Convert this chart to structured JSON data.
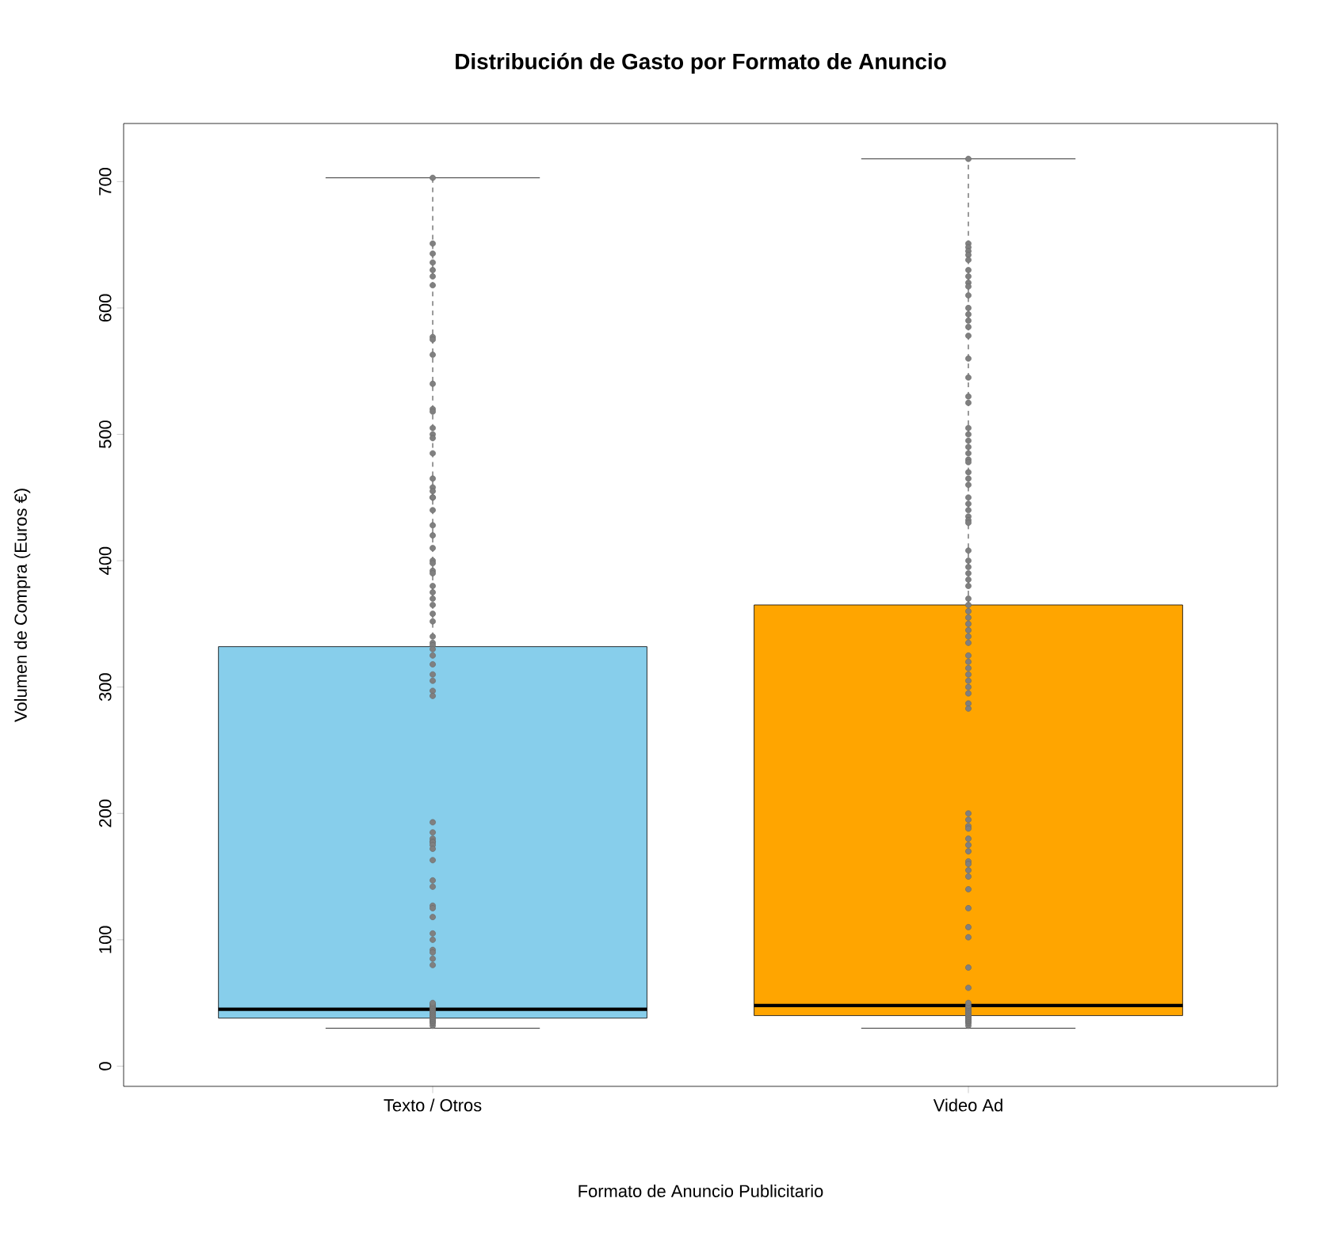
{
  "chart_data": {
    "type": "box",
    "title": "Distribución de Gasto por Formato de Anuncio",
    "xlabel": "Formato de Anuncio Publicitario",
    "ylabel": "Volumen de Compra (Euros €)",
    "categories": [
      "Texto / Otros",
      "Video Ad"
    ],
    "colors": [
      "#87ceeb",
      "#ffa500"
    ],
    "boxes": [
      {
        "low": 30,
        "q1": 38,
        "median": 45,
        "q3": 332,
        "high": 703
      },
      {
        "low": 30,
        "q1": 40,
        "median": 48,
        "q3": 365,
        "high": 718
      }
    ],
    "series": [
      {
        "type": "scatter",
        "color": "#808080",
        "marker": "circle",
        "x": [
          "Texto / Otros",
          "Texto / Otros",
          "Texto / Otros",
          "Texto / Otros",
          "Texto / Otros",
          "Texto / Otros",
          "Texto / Otros",
          "Texto / Otros",
          "Texto / Otros",
          "Texto / Otros",
          "Texto / Otros",
          "Texto / Otros",
          "Texto / Otros",
          "Texto / Otros",
          "Texto / Otros",
          "Texto / Otros",
          "Texto / Otros",
          "Texto / Otros",
          "Texto / Otros",
          "Texto / Otros",
          "Texto / Otros",
          "Texto / Otros",
          "Texto / Otros",
          "Texto / Otros",
          "Texto / Otros",
          "Texto / Otros",
          "Texto / Otros",
          "Texto / Otros",
          "Texto / Otros",
          "Texto / Otros",
          "Texto / Otros",
          "Texto / Otros",
          "Texto / Otros",
          "Texto / Otros",
          "Texto / Otros",
          "Texto / Otros",
          "Texto / Otros",
          "Texto / Otros",
          "Texto / Otros",
          "Texto / Otros",
          "Texto / Otros",
          "Texto / Otros",
          "Texto / Otros",
          "Texto / Otros",
          "Texto / Otros",
          "Texto / Otros",
          "Texto / Otros",
          "Texto / Otros",
          "Texto / Otros",
          "Texto / Otros",
          "Texto / Otros",
          "Texto / Otros",
          "Texto / Otros",
          "Texto / Otros",
          "Texto / Otros",
          "Texto / Otros",
          "Texto / Otros",
          "Texto / Otros",
          "Texto / Otros",
          "Texto / Otros",
          "Texto / Otros",
          "Texto / Otros",
          "Texto / Otros",
          "Texto / Otros",
          "Texto / Otros",
          "Texto / Otros",
          "Texto / Otros",
          "Texto / Otros",
          "Texto / Otros",
          "Texto / Otros",
          "Texto / Otros",
          "Texto / Otros",
          "Texto / Otros",
          "Texto / Otros",
          "Texto / Otros",
          "Texto / Otros",
          "Texto / Otros",
          "Texto / Otros",
          "Texto / Otros",
          "Texto / Otros",
          "Texto / Otros",
          "Texto / Otros",
          "Texto / Otros"
        ],
        "values": [
          703,
          651,
          643,
          636,
          630,
          625,
          618,
          577,
          575,
          563,
          540,
          520,
          518,
          505,
          500,
          497,
          485,
          465,
          458,
          455,
          450,
          450,
          440,
          428,
          420,
          410,
          400,
          398,
          392,
          390,
          380,
          375,
          370,
          365,
          358,
          352,
          340,
          335,
          333,
          330,
          325,
          318,
          310,
          305,
          297,
          293,
          193,
          185,
          180,
          178,
          177,
          175,
          172,
          163,
          147,
          142,
          127,
          125,
          118,
          105,
          100,
          92,
          90,
          85,
          80,
          32,
          34,
          35,
          36,
          37,
          38,
          39,
          40,
          41,
          42,
          43,
          44,
          45,
          46,
          47,
          48,
          49,
          50
        ]
      },
      {
        "type": "scatter",
        "color": "#808080",
        "marker": "circle",
        "x": [
          "Video Ad",
          "Video Ad",
          "Video Ad",
          "Video Ad",
          "Video Ad",
          "Video Ad",
          "Video Ad",
          "Video Ad",
          "Video Ad",
          "Video Ad",
          "Video Ad",
          "Video Ad",
          "Video Ad",
          "Video Ad",
          "Video Ad",
          "Video Ad",
          "Video Ad",
          "Video Ad",
          "Video Ad",
          "Video Ad",
          "Video Ad",
          "Video Ad",
          "Video Ad",
          "Video Ad",
          "Video Ad",
          "Video Ad",
          "Video Ad",
          "Video Ad",
          "Video Ad",
          "Video Ad",
          "Video Ad",
          "Video Ad",
          "Video Ad",
          "Video Ad",
          "Video Ad",
          "Video Ad",
          "Video Ad",
          "Video Ad",
          "Video Ad",
          "Video Ad",
          "Video Ad",
          "Video Ad",
          "Video Ad",
          "Video Ad",
          "Video Ad",
          "Video Ad",
          "Video Ad",
          "Video Ad",
          "Video Ad",
          "Video Ad",
          "Video Ad",
          "Video Ad",
          "Video Ad",
          "Video Ad",
          "Video Ad",
          "Video Ad",
          "Video Ad",
          "Video Ad",
          "Video Ad",
          "Video Ad",
          "Video Ad",
          "Video Ad",
          "Video Ad",
          "Video Ad",
          "Video Ad",
          "Video Ad",
          "Video Ad",
          "Video Ad",
          "Video Ad",
          "Video Ad",
          "Video Ad",
          "Video Ad",
          "Video Ad",
          "Video Ad",
          "Video Ad",
          "Video Ad",
          "Video Ad",
          "Video Ad",
          "Video Ad",
          "Video Ad",
          "Video Ad",
          "Video Ad",
          "Video Ad",
          "Video Ad",
          "Video Ad",
          "Video Ad",
          "Video Ad",
          "Video Ad",
          "Video Ad",
          "Video Ad",
          "Video Ad",
          "Video Ad",
          "Video Ad"
        ],
        "values": [
          718,
          651,
          648,
          645,
          642,
          638,
          630,
          625,
          620,
          617,
          610,
          600,
          595,
          590,
          585,
          578,
          560,
          545,
          530,
          525,
          505,
          500,
          495,
          490,
          485,
          480,
          478,
          470,
          465,
          460,
          450,
          445,
          440,
          435,
          432,
          430,
          408,
          400,
          395,
          390,
          385,
          380,
          370,
          365,
          360,
          355,
          350,
          345,
          340,
          335,
          325,
          320,
          315,
          310,
          305,
          300,
          295,
          287,
          283,
          200,
          195,
          190,
          188,
          180,
          175,
          170,
          162,
          160,
          155,
          150,
          140,
          125,
          110,
          102,
          78,
          62,
          32,
          34,
          35,
          36,
          37,
          38,
          39,
          40,
          41,
          42,
          43,
          44,
          45,
          46,
          47,
          48,
          50
        ]
      }
    ],
    "ylim": [
      -16,
      746
    ],
    "yticks": [
      0,
      100,
      200,
      300,
      400,
      500,
      600,
      700
    ],
    "grid": false
  }
}
